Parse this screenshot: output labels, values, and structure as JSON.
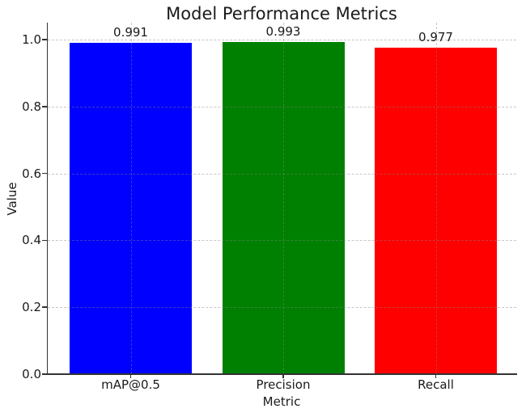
{
  "chart_data": {
    "type": "bar",
    "title": "Model Performance Metrics",
    "xlabel": "Metric",
    "ylabel": "Value",
    "categories": [
      "mAP@0.5",
      "Precision",
      "Recall"
    ],
    "values": [
      0.991,
      0.993,
      0.977
    ],
    "value_labels": [
      "0.991",
      "0.993",
      "0.977"
    ],
    "bar_colors": [
      "#0000ff",
      "#008000",
      "#ff0000"
    ],
    "yticks": [
      0.0,
      0.2,
      0.4,
      0.6,
      0.8,
      1.0
    ],
    "ytick_labels": [
      "0.0",
      "0.2",
      "0.4",
      "0.6",
      "0.8",
      "1.0"
    ],
    "ylim": [
      0,
      1.05
    ],
    "grid": "dashed gridlines on both axes, drawn over bars",
    "gridline_color": "#cccccc",
    "spine_color": "#333333",
    "background": "#ffffff",
    "legend": "none"
  }
}
